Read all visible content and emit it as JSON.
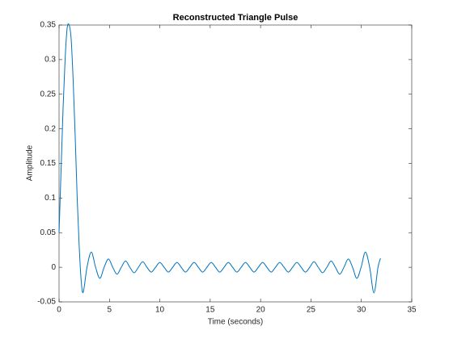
{
  "chart_data": {
    "type": "line",
    "title": "Reconstructed Triangle Pulse",
    "xlabel": "Time (seconds)",
    "ylabel": "Amplitude",
    "xlim": [
      0,
      35
    ],
    "xticks": [
      0,
      5,
      10,
      15,
      20,
      25,
      30,
      35
    ],
    "ylim": [
      -0.05,
      0.35
    ],
    "yticks": [
      -0.05,
      0,
      0.05,
      0.1,
      0.15,
      0.2,
      0.25,
      0.3,
      0.35
    ],
    "grid": false,
    "series": [
      {
        "name": "Reconstructed Triangle Pulse",
        "color": "#0072bd",
        "x": [
          0,
          0.2,
          0.4,
          0.6,
          0.8,
          1.0,
          1.2,
          1.4,
          1.6,
          1.8,
          2.0,
          2.2,
          2.4,
          2.775,
          3.2,
          3.625,
          4.05,
          4.475,
          4.9,
          5.325,
          5.75,
          6.175,
          6.6,
          7.025,
          7.45,
          7.875,
          8.3,
          8.725,
          9.15,
          9.575,
          10.0,
          10.425,
          10.85,
          11.275,
          11.7,
          12.125,
          12.55,
          12.975,
          13.4,
          13.825,
          14.25,
          14.675,
          15.1,
          15.525,
          15.95,
          16.375,
          16.8,
          17.225,
          17.65,
          18.075,
          18.5,
          18.925,
          19.35,
          19.775,
          20.2,
          20.625,
          21.05,
          21.475,
          21.9,
          22.325,
          22.75,
          23.175,
          23.6,
          24.025,
          24.45,
          24.875,
          25.3,
          25.725,
          26.15,
          26.575,
          27.0,
          27.425,
          27.85,
          28.275,
          28.7,
          29.125,
          29.55,
          29.975,
          30.4,
          30.825,
          31.25,
          31.65,
          31.9
        ],
        "values": [
          0.05,
          0.14,
          0.23,
          0.3,
          0.345,
          0.35,
          0.33,
          0.27,
          0.19,
          0.1,
          0.03,
          -0.02,
          -0.036,
          0,
          0.022,
          0,
          -0.016,
          0,
          0.012,
          0,
          -0.01,
          0,
          0.009,
          0,
          -0.008,
          0,
          0.008,
          0,
          -0.007,
          0,
          0.007,
          0,
          -0.007,
          0,
          0.007,
          0,
          -0.007,
          0,
          0.007,
          0,
          -0.007,
          0,
          0.007,
          0,
          -0.007,
          0,
          0.007,
          0,
          -0.007,
          0,
          0.007,
          0,
          -0.007,
          0,
          0.007,
          0,
          -0.007,
          0,
          0.007,
          0,
          -0.007,
          0,
          0.007,
          0,
          -0.007,
          0,
          0.008,
          0,
          -0.008,
          0,
          0.009,
          0,
          -0.01,
          0,
          0.012,
          0,
          -0.016,
          0,
          0.022,
          0,
          -0.037,
          0,
          0.013
        ]
      }
    ]
  }
}
